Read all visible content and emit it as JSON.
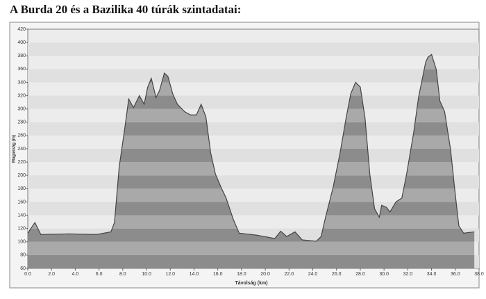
{
  "chart_data": {
    "type": "area",
    "title": "A Burda 20 és a Bazilika 40 túrák szintadatai:",
    "ylabel": "Magasság (m)",
    "xlabel": "Távolság (km)",
    "x": [
      0,
      0.6,
      1.1,
      3.5,
      5.8,
      7.0,
      7.3,
      7.7,
      8.2,
      8.5,
      8.9,
      9.4,
      9.8,
      10.1,
      10.4,
      10.8,
      11.1,
      11.5,
      11.8,
      12.2,
      12.6,
      13.2,
      13.7,
      14.2,
      14.6,
      15.0,
      15.4,
      15.8,
      16.3,
      16.7,
      17.3,
      17.8,
      19.3,
      20.8,
      21.3,
      21.8,
      22.5,
      23.1,
      24.3,
      24.7,
      25.1,
      25.7,
      26.3,
      26.8,
      27.2,
      27.6,
      28.0,
      28.4,
      28.8,
      29.2,
      29.6,
      29.8,
      30.2,
      30.5,
      31.0,
      31.5,
      31.9,
      32.5,
      32.9,
      33.5,
      33.7,
      34.0,
      34.4,
      34.7,
      35.1,
      35.6,
      36.0,
      36.3,
      36.7,
      37.6
    ],
    "values": [
      113,
      129,
      111,
      112,
      111,
      115,
      129,
      213,
      275,
      315,
      302,
      320,
      307,
      333,
      346,
      317,
      328,
      354,
      349,
      323,
      307,
      296,
      291,
      291,
      307,
      288,
      234,
      202,
      181,
      166,
      134,
      113,
      110,
      105,
      116,
      108,
      115,
      103,
      101,
      108,
      139,
      181,
      234,
      286,
      323,
      340,
      333,
      286,
      202,
      150,
      137,
      155,
      152,
      145,
      160,
      166,
      202,
      265,
      317,
      370,
      378,
      382,
      359,
      312,
      296,
      239,
      171,
      124,
      113,
      115
    ],
    "colors": [
      "#8c8c8c",
      "#a9a9a9"
    ],
    "xlim": [
      0,
      38
    ],
    "ylim": [
      60,
      420
    ],
    "xticks": [
      {
        "value": 0,
        "label": "0.0"
      },
      {
        "value": 2,
        "label": "2.0"
      },
      {
        "value": 4,
        "label": "4.0"
      },
      {
        "value": 6,
        "label": "6.0"
      },
      {
        "value": 8,
        "label": "8.0"
      },
      {
        "value": 10,
        "label": "10.0"
      },
      {
        "value": 12,
        "label": "12.0"
      },
      {
        "value": 14,
        "label": "14.0"
      },
      {
        "value": 16,
        "label": "16.0"
      },
      {
        "value": 18,
        "label": "18.0"
      },
      {
        "value": 20,
        "label": "20.0"
      },
      {
        "value": 22,
        "label": "22.0"
      },
      {
        "value": 24,
        "label": "24.0"
      },
      {
        "value": 26,
        "label": "26.0"
      },
      {
        "value": 28,
        "label": "28.0"
      },
      {
        "value": 30,
        "label": "30.0"
      },
      {
        "value": 32,
        "label": "32.0"
      },
      {
        "value": 34,
        "label": "34.0"
      },
      {
        "value": 36,
        "label": "36.0"
      },
      {
        "value": 38,
        "label": "38.0"
      }
    ],
    "yticks": [
      60,
      80,
      100,
      120,
      140,
      160,
      180,
      200,
      220,
      240,
      260,
      280,
      300,
      320,
      340,
      360,
      380,
      400,
      420
    ]
  }
}
